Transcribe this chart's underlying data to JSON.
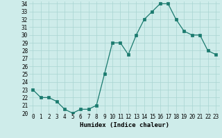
{
  "x": [
    0,
    1,
    2,
    3,
    4,
    5,
    6,
    7,
    8,
    9,
    10,
    11,
    12,
    13,
    14,
    15,
    16,
    17,
    18,
    19,
    20,
    21,
    22,
    23
  ],
  "y": [
    23,
    22,
    22,
    21.5,
    20.5,
    20,
    20.5,
    20.5,
    21,
    25,
    29,
    29,
    27.5,
    30,
    32,
    33,
    34,
    34,
    32,
    30.5,
    30,
    30,
    28,
    27.5
  ],
  "xlabel": "Humidex (Indice chaleur)",
  "ylim": [
    20,
    34.3
  ],
  "xlim": [
    -0.5,
    23.5
  ],
  "yticks": [
    20,
    21,
    22,
    23,
    24,
    25,
    26,
    27,
    28,
    29,
    30,
    31,
    32,
    33,
    34
  ],
  "xticks": [
    0,
    1,
    2,
    3,
    4,
    5,
    6,
    7,
    8,
    9,
    10,
    11,
    12,
    13,
    14,
    15,
    16,
    17,
    18,
    19,
    20,
    21,
    22,
    23
  ],
  "line_color": "#1a7a6e",
  "marker_color": "#1a7a6e",
  "bg_color": "#ceecea",
  "grid_color": "#a8d5d1",
  "tick_fontsize": 5.5,
  "xlabel_fontsize": 6.5
}
